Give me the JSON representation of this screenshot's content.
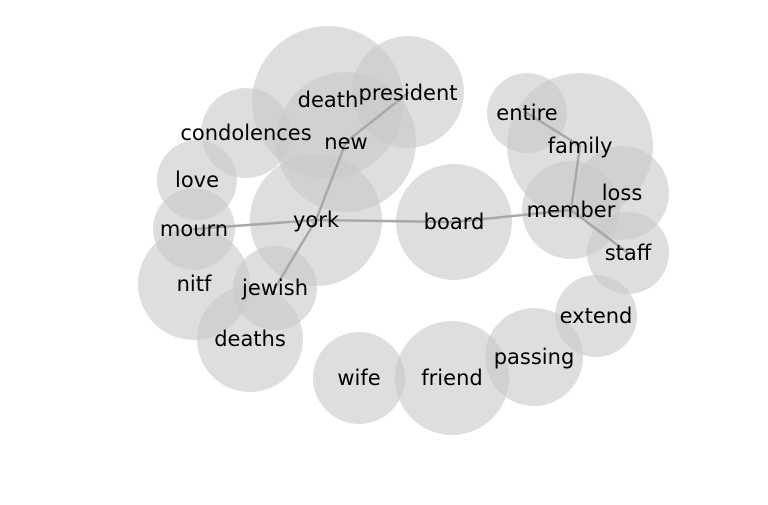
{
  "colors": {
    "bubble_fill": "#c8c8c8",
    "bubble_opacity": 0.6,
    "edge_color": "#a8a8a8",
    "text_color": "#000000",
    "background": "#ffffff"
  },
  "nodes": [
    {
      "id": "death",
      "label": "death"
    },
    {
      "id": "president",
      "label": "president"
    },
    {
      "id": "new",
      "label": "new"
    },
    {
      "id": "condolences",
      "label": "condolences"
    },
    {
      "id": "love",
      "label": "love"
    },
    {
      "id": "york",
      "label": "york"
    },
    {
      "id": "mourn",
      "label": "mourn"
    },
    {
      "id": "nitf",
      "label": "nitf"
    },
    {
      "id": "jewish",
      "label": "jewish"
    },
    {
      "id": "deaths",
      "label": "deaths"
    },
    {
      "id": "board",
      "label": "board"
    },
    {
      "id": "entire",
      "label": "entire"
    },
    {
      "id": "family",
      "label": "family"
    },
    {
      "id": "loss",
      "label": "loss"
    },
    {
      "id": "member",
      "label": "member"
    },
    {
      "id": "staff",
      "label": "staff"
    },
    {
      "id": "extend",
      "label": "extend"
    },
    {
      "id": "passing",
      "label": "passing"
    },
    {
      "id": "friend",
      "label": "friend"
    },
    {
      "id": "wife",
      "label": "wife"
    }
  ],
  "edges": [
    [
      "president",
      "new"
    ],
    [
      "new",
      "york"
    ],
    [
      "york",
      "jewish"
    ],
    [
      "york",
      "mourn"
    ],
    [
      "york",
      "board"
    ],
    [
      "board",
      "member"
    ],
    [
      "member",
      "family"
    ],
    [
      "entire",
      "family"
    ],
    [
      "member",
      "staff"
    ]
  ]
}
